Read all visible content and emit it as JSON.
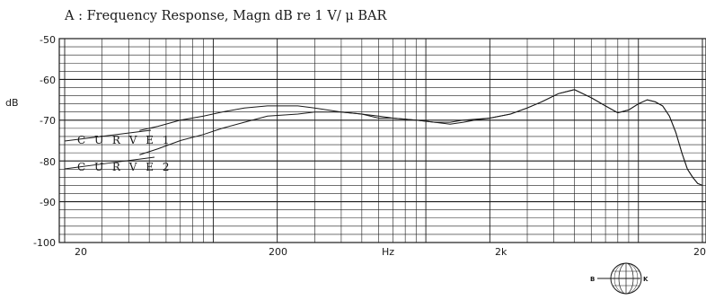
{
  "chart_data": {
    "type": "line",
    "title": "A : Frequency Response, Magn dB re  1 V/ μ BAR",
    "ylabel": "dB",
    "xlabel": "Hz",
    "x_scale": "log",
    "xlim": [
      20,
      20000
    ],
    "ylim": [
      -100,
      -50
    ],
    "grid": true,
    "y_ticks": [
      "-50",
      "-60",
      "-70",
      "-80",
      "-90",
      "-100"
    ],
    "x_ticks": [
      "20",
      "200",
      "Hz",
      "2k",
      "20"
    ],
    "series": [
      {
        "name": "CURVE 1",
        "points": [
          [
            45,
            -72.5
          ],
          [
            55,
            -71.5
          ],
          [
            70,
            -70
          ],
          [
            90,
            -69
          ],
          [
            110,
            -68
          ],
          [
            140,
            -67
          ],
          [
            180,
            -66.5
          ],
          [
            250,
            -66.5
          ],
          [
            300,
            -67
          ],
          [
            400,
            -68
          ],
          [
            500,
            -68.5
          ],
          [
            600,
            -69
          ],
          [
            700,
            -69.5
          ],
          [
            900,
            -70
          ],
          [
            1100,
            -70.5
          ],
          [
            1300,
            -70.5
          ],
          [
            1500,
            -70
          ],
          [
            2000,
            -69.5
          ],
          [
            2500,
            -68.5
          ],
          [
            3000,
            -67
          ],
          [
            3500,
            -65.5
          ],
          [
            4200,
            -63.5
          ],
          [
            5000,
            -62.5
          ],
          [
            6000,
            -64.5
          ],
          [
            7000,
            -66.5
          ],
          [
            8000,
            -68.2
          ],
          [
            9000,
            -67.5
          ],
          [
            10000,
            -66
          ],
          [
            11000,
            -65
          ],
          [
            12000,
            -65.5
          ],
          [
            13000,
            -66.5
          ],
          [
            14000,
            -69
          ],
          [
            15000,
            -73
          ],
          [
            16000,
            -78
          ],
          [
            17000,
            -82
          ],
          [
            18000,
            -84
          ],
          [
            19000,
            -85.5
          ],
          [
            20000,
            -86
          ]
        ]
      },
      {
        "name": "CURVE 2",
        "points": [
          [
            45,
            -78.5
          ],
          [
            55,
            -77
          ],
          [
            70,
            -75
          ],
          [
            90,
            -73.5
          ],
          [
            110,
            -72
          ],
          [
            140,
            -70.5
          ],
          [
            180,
            -69
          ],
          [
            250,
            -68.5
          ],
          [
            300,
            -68
          ],
          [
            400,
            -68
          ],
          [
            500,
            -68.5
          ],
          [
            600,
            -69.5
          ],
          [
            700,
            -69.5
          ],
          [
            900,
            -70
          ],
          [
            1100,
            -70.5
          ],
          [
            1300,
            -71
          ],
          [
            1500,
            -70.5
          ],
          [
            1700,
            -70
          ],
          [
            2000,
            -69.5
          ],
          [
            2500,
            -68.5
          ],
          [
            3000,
            -67
          ],
          [
            3500,
            -65.5
          ],
          [
            4200,
            -63.5
          ],
          [
            5000,
            -62.5
          ],
          [
            6000,
            -64.5
          ],
          [
            7000,
            -66.5
          ],
          [
            8000,
            -68.2
          ],
          [
            9000,
            -67.5
          ],
          [
            10000,
            -66
          ],
          [
            11000,
            -65
          ],
          [
            12000,
            -65.5
          ],
          [
            13000,
            -66.5
          ],
          [
            14000,
            -69
          ],
          [
            15000,
            -73
          ],
          [
            16000,
            -78
          ],
          [
            17000,
            -82
          ],
          [
            18000,
            -84
          ],
          [
            19000,
            -85.5
          ],
          [
            20000,
            -86
          ]
        ]
      }
    ],
    "curve_labels": [
      "C U R V E 1",
      "C U R V E 2"
    ]
  },
  "logo": {
    "left": "B",
    "right": "K"
  }
}
